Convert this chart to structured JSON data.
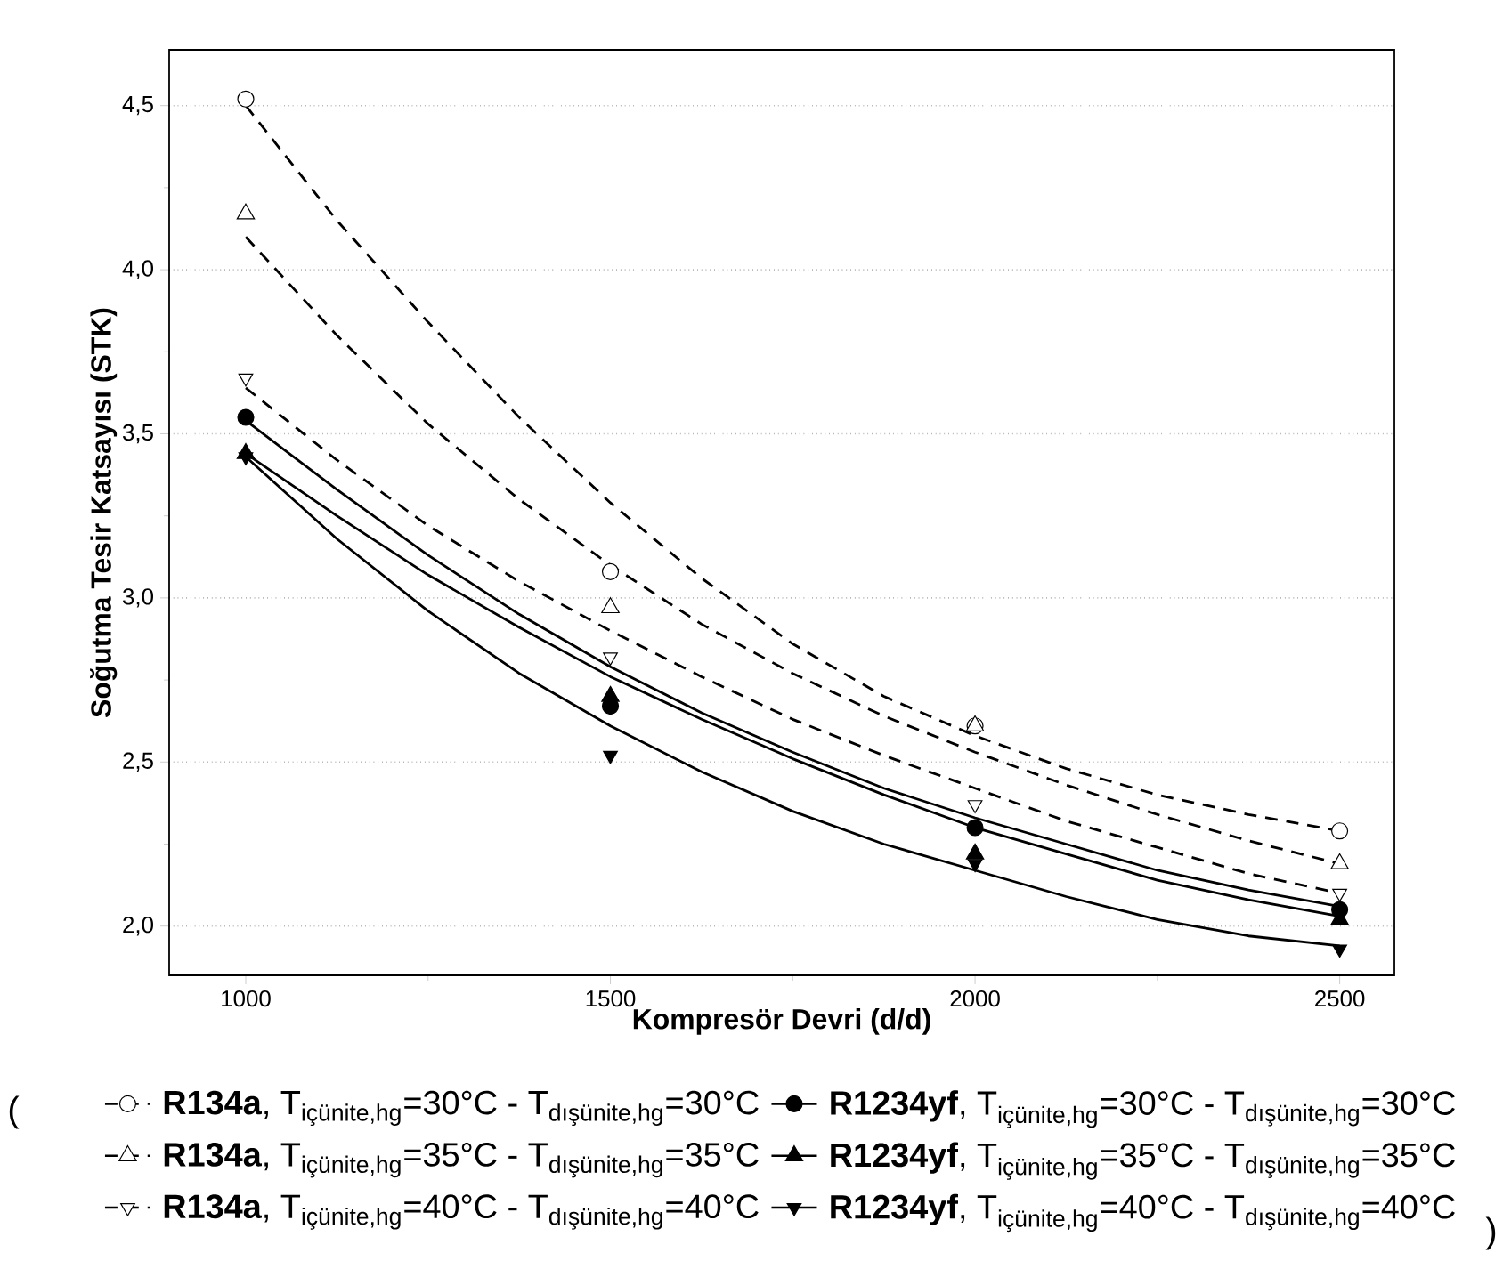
{
  "chart_data": {
    "type": "scatter",
    "xlabel": "Kompresör Devri (d/d)",
    "ylabel": "Soğutma Tesir Katsayısı (STK)",
    "x": [
      1000,
      1500,
      2000,
      2500
    ],
    "xlim": [
      895,
      2575
    ],
    "ylim": [
      1.85,
      4.67
    ],
    "xticks": [
      1000,
      1500,
      2000,
      2500
    ],
    "yticks": [
      {
        "value": 2.0,
        "label": "2,0"
      },
      {
        "value": 2.5,
        "label": "2,5"
      },
      {
        "value": 3.0,
        "label": "3,0"
      },
      {
        "value": 3.5,
        "label": "3,5"
      },
      {
        "value": 4.0,
        "label": "4,0"
      },
      {
        "value": 4.5,
        "label": "4,5"
      }
    ],
    "grid": "y",
    "legend": "bottom",
    "annotations": [
      "(",
      ")"
    ],
    "series": [
      {
        "name": "\\text{\\textbf{R134a}, T}_{\\text{içünite,hg}}\\text{=30°C - T}_{\\text{dışünite,hg}}\\text{=30°C}",
        "color": "#000000",
        "marker": "circle",
        "line_style": "dashed",
        "values": [
          4.52,
          3.08,
          2.61,
          2.29
        ]
      },
      {
        "name": "\\text{\\textbf{R1234yf}, T}_{\\text{içünite,hg}}\\text{=30°C - T}_{\\text{dışünite,hg}}\\text{=30°C}",
        "color": "#000000",
        "marker": "circle",
        "line_style": "solid",
        "values": [
          3.55,
          2.67,
          2.3,
          2.05
        ]
      },
      {
        "name": "\\text{\\textbf{R134a}, T}_{\\text{içünite,hg}}\\text{=35°C - T}_{\\text{dışünite,hg}}\\text{=35°C}",
        "color": "#000000",
        "marker": "triangle",
        "line_style": "dashed",
        "values": [
          4.17,
          2.97,
          2.61,
          2.19
        ]
      },
      {
        "name": "\\text{\\textbf{R1234yf}, T}_{\\text{içünite,hg}}\\text{=35°C - T}_{\\text{dışünite,hg}}\\text{=35°C}",
        "color": "#000000",
        "marker": "triangle",
        "line_style": "solid",
        "values": [
          3.44,
          2.7,
          2.22,
          2.02
        ]
      },
      {
        "name": "\\text{\\textbf{R134a}, T}_{\\text{içünite,hg}}\\text{=40°C - T}_{\\text{dışünite,hg}}\\text{=40°C}",
        "color": "#000000",
        "marker": "triangle-down",
        "line_style": "dashed",
        "values": [
          3.67,
          2.82,
          2.37,
          2.1
        ]
      },
      {
        "name": "\\text{\\textbf{R1234yf}, T}_{\\text{içünite,hg}}\\text{=40°C - T}_{\\text{dışünite,hg}}\\text{=40°C}",
        "color": "#000000",
        "marker": "triangle-down",
        "line_style": "solid",
        "values": [
          3.43,
          2.52,
          2.19,
          1.93
        ]
      },
      {
        "type": "line",
        "color": "#000000",
        "line_style": "dashed",
        "x": [
          1000,
          1125,
          1250,
          1375,
          1500,
          1625,
          1750,
          1875,
          2000,
          2125,
          2250,
          2375,
          2500
        ],
        "values": [
          4.5,
          4.15,
          3.84,
          3.55,
          3.29,
          3.06,
          2.86,
          2.7,
          2.58,
          2.48,
          2.4,
          2.34,
          2.29
        ]
      },
      {
        "type": "line",
        "color": "#000000",
        "line_style": "dashed",
        "x": [
          1000,
          1125,
          1250,
          1375,
          1500,
          1625,
          1750,
          1875,
          2000,
          2125,
          2250,
          2375,
          2500
        ],
        "values": [
          4.1,
          3.8,
          3.53,
          3.3,
          3.1,
          2.92,
          2.77,
          2.64,
          2.53,
          2.43,
          2.34,
          2.26,
          2.19
        ]
      },
      {
        "type": "line",
        "color": "#000000",
        "line_style": "dashed",
        "x": [
          1000,
          1125,
          1250,
          1375,
          1500,
          1625,
          1750,
          1875,
          2000,
          2125,
          2250,
          2375,
          2500
        ],
        "values": [
          3.64,
          3.42,
          3.22,
          3.05,
          2.9,
          2.76,
          2.63,
          2.52,
          2.42,
          2.32,
          2.24,
          2.16,
          2.1
        ]
      },
      {
        "type": "line",
        "color": "#000000",
        "line_style": "solid",
        "x": [
          1000,
          1125,
          1250,
          1375,
          1500,
          1625,
          1750,
          1875,
          2000,
          2125,
          2250,
          2375,
          2500
        ],
        "values": [
          3.54,
          3.33,
          3.13,
          2.95,
          2.79,
          2.65,
          2.53,
          2.42,
          2.33,
          2.25,
          2.17,
          2.11,
          2.06
        ]
      },
      {
        "type": "line",
        "color": "#000000",
        "line_style": "solid",
        "x": [
          1000,
          1125,
          1250,
          1375,
          1500,
          1625,
          1750,
          1875,
          2000,
          2125,
          2250,
          2375,
          2500
        ],
        "values": [
          3.44,
          3.25,
          3.07,
          2.91,
          2.76,
          2.63,
          2.51,
          2.4,
          2.3,
          2.22,
          2.14,
          2.08,
          2.03
        ]
      },
      {
        "type": "line",
        "color": "#000000",
        "line_style": "solid",
        "x": [
          1000,
          1125,
          1250,
          1375,
          1500,
          1625,
          1750,
          1875,
          2000,
          2125,
          2250,
          2375,
          2500
        ],
        "values": [
          3.43,
          3.18,
          2.96,
          2.77,
          2.61,
          2.47,
          2.35,
          2.25,
          2.17,
          2.09,
          2.02,
          1.97,
          1.94
        ]
      }
    ]
  }
}
